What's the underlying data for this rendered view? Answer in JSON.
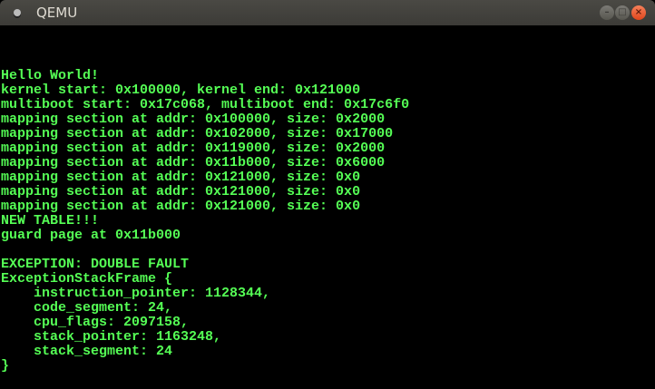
{
  "window": {
    "title": "QEMU",
    "minimize_icon": "minimize-icon",
    "maximize_icon": "maximize-icon",
    "close_icon": "close-icon"
  },
  "console": {
    "text_color": "#55ff55",
    "lines": [
      "Hello World!",
      "kernel start: 0x100000, kernel end: 0x121000",
      "multiboot start: 0x17c068, multiboot end: 0x17c6f0",
      "mapping section at addr: 0x100000, size: 0x2000",
      "mapping section at addr: 0x102000, size: 0x17000",
      "mapping section at addr: 0x119000, size: 0x2000",
      "mapping section at addr: 0x11b000, size: 0x6000",
      "mapping section at addr: 0x121000, size: 0x0",
      "mapping section at addr: 0x121000, size: 0x0",
      "mapping section at addr: 0x121000, size: 0x0",
      "NEW TABLE!!!",
      "guard page at 0x11b000",
      "",
      "EXCEPTION: DOUBLE FAULT",
      "ExceptionStackFrame {",
      "    instruction_pointer: 1128344,",
      "    code_segment: 24,",
      "    cpu_flags: 2097158,",
      "    stack_pointer: 1163248,",
      "    stack_segment: 24",
      "}"
    ]
  }
}
